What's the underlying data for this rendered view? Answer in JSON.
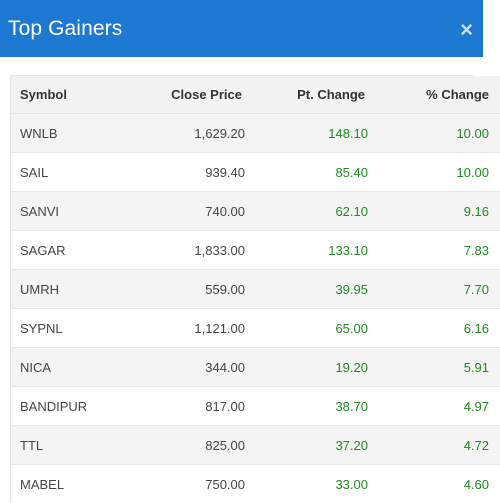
{
  "header": {
    "title": "Top Gainers",
    "close_icon": "×"
  },
  "table": {
    "columns": [
      "Symbol",
      "Close Price",
      "Pt. Change",
      "% Change"
    ],
    "rows": [
      {
        "symbol": "WNLB",
        "close": "1,629.20",
        "pt_change": "148.10",
        "pct_change": "10.00"
      },
      {
        "symbol": "SAIL",
        "close": "939.40",
        "pt_change": "85.40",
        "pct_change": "10.00"
      },
      {
        "symbol": "SANVI",
        "close": "740.00",
        "pt_change": "62.10",
        "pct_change": "9.16"
      },
      {
        "symbol": "SAGAR",
        "close": "1,833.00",
        "pt_change": "133.10",
        "pct_change": "7.83"
      },
      {
        "symbol": "UMRH",
        "close": "559.00",
        "pt_change": "39.95",
        "pct_change": "7.70"
      },
      {
        "symbol": "SYPNL",
        "close": "1,121.00",
        "pt_change": "65.00",
        "pct_change": "6.16"
      },
      {
        "symbol": "NICA",
        "close": "344.00",
        "pt_change": "19.20",
        "pct_change": "5.91"
      },
      {
        "symbol": "BANDIPUR",
        "close": "817.00",
        "pt_change": "38.70",
        "pct_change": "4.97"
      },
      {
        "symbol": "TTL",
        "close": "825.00",
        "pt_change": "37.20",
        "pct_change": "4.72"
      },
      {
        "symbol": "MABEL",
        "close": "750.00",
        "pt_change": "33.00",
        "pct_change": "4.60"
      }
    ]
  },
  "colors": {
    "header_bg": "#1d78d2",
    "positive": "#1e8a1e"
  }
}
